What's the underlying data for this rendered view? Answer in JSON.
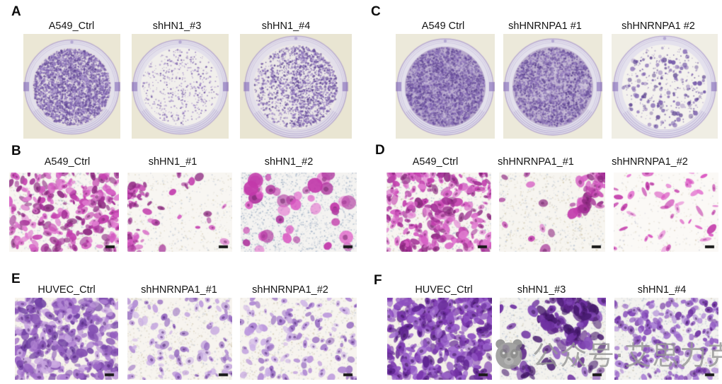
{
  "figure": {
    "watermark": {
      "icon": "panda-icon",
      "text": "公众号·艾思力克",
      "color": "#979797"
    },
    "panels": [
      {
        "letter": "A",
        "assay": "colony-formation-dishes",
        "items": [
          {
            "label": "A549_Ctrl",
            "render": {
              "kind": "dish",
              "seed": 11,
              "bg": "#ebe7d5",
              "wellBg": "#f3f0ea",
              "wash": 0.12,
              "colonies": 3800,
              "dmin": 0.5,
              "dmax": 1.7,
              "bias": "uniform",
              "palette": [
                "#7e63ae",
                "#9278bf",
                "#6a4f9e",
                "#a58fcb",
                "#5d4490"
              ]
            }
          },
          {
            "label": "shHN1_#3",
            "render": {
              "kind": "dish",
              "seed": 12,
              "bg": "#ebe7d5",
              "wellBg": "#f4f2ee",
              "wash": 0.02,
              "colonies": 520,
              "dmin": 0.5,
              "dmax": 1.4,
              "bias": "uniform",
              "palette": [
                "#7e63ae",
                "#9278bf",
                "#6a4f9e",
                "#a58fcb"
              ]
            }
          },
          {
            "label": "shHN1_#4",
            "render": {
              "kind": "dish",
              "seed": 13,
              "bg": "#e9e5d2",
              "wellBg": "#f3f1ec",
              "wash": 0.06,
              "colonies": 2600,
              "dmin": 0.5,
              "dmax": 1.7,
              "bias": "right",
              "palette": [
                "#7e63ae",
                "#9278bf",
                "#6a4f9e",
                "#a58fcb",
                "#5d4490"
              ]
            }
          }
        ]
      },
      {
        "letter": "B",
        "assay": "transwell-micrographs",
        "items": [
          {
            "label": "A549_Ctrl",
            "render": {
              "kind": "micro",
              "seed": 21,
              "bg": "#f8f5f1",
              "noise": 900,
              "noiseColors": [
                "#a9b6cc",
                "#cdc3a4",
                "#c3cbd8"
              ],
              "cells": 240,
              "smin": 3,
              "smax": 8,
              "elong": 0.42,
              "clusters": 0,
              "nucleus": "#6b1f63",
              "scale_bar": true,
              "palette": [
                "#c33fae",
                "#d55cc3",
                "#a32f96",
                "#e07cd0",
                "#8e2a82"
              ]
            }
          },
          {
            "label": "shHN1_#1",
            "render": {
              "kind": "micro",
              "seed": 22,
              "bg": "#f8f6f2",
              "noise": 650,
              "noiseColors": [
                "#b7c2d2",
                "#d6cdb2",
                "#dcd8cc"
              ],
              "cells": 78,
              "smin": 3,
              "smax": 7,
              "elong": 0.45,
              "clusters": 2,
              "nucleus": "#6b1f63",
              "scale_bar": true,
              "palette": [
                "#c33fae",
                "#d55cc3",
                "#a32f96",
                "#8e2a82"
              ]
            }
          },
          {
            "label": "shHN1_#2",
            "render": {
              "kind": "micro",
              "seed": 23,
              "bg": "#f4f3f1",
              "noise": 1600,
              "noiseColors": [
                "#9fb0c6",
                "#8fa2bc",
                "#c3cbd8"
              ],
              "cells": 40,
              "smin": 5,
              "smax": 11,
              "elong": 0.8,
              "clusters": 0,
              "nucleus": "#6b1f63",
              "scale_bar": true,
              "palette": [
                "#d94fc0",
                "#e370cd",
                "#c238aa",
                "#b03aa0"
              ]
            }
          }
        ]
      },
      {
        "letter": "C",
        "assay": "colony-formation-dishes",
        "items": [
          {
            "label": "A549 Ctrl",
            "render": {
              "kind": "dish",
              "seed": 14,
              "bg": "#ece9da",
              "wellBg": "#efece6",
              "wash": 0.5,
              "colonies": 2800,
              "dmin": 0.6,
              "dmax": 1.8,
              "bias": "uniform",
              "solid": true,
              "palette": [
                "#6a4f9e",
                "#7e63ae",
                "#5d4490",
                "#9278bf"
              ]
            }
          },
          {
            "label": "shHNRNPA1 #1",
            "render": {
              "kind": "dish",
              "seed": 15,
              "bg": "#ece9da",
              "wellBg": "#f0ede7",
              "wash": 0.44,
              "colonies": 2200,
              "dmin": 0.6,
              "dmax": 1.8,
              "bias": "uniform",
              "solid": true,
              "palette": [
                "#6a4f9e",
                "#7e63ae",
                "#5d4490",
                "#9278bf"
              ]
            }
          },
          {
            "label": "shHNRNPA1 #2",
            "render": {
              "kind": "dish",
              "seed": 16,
              "bg": "#f0eee4",
              "wellBg": "#f4f2ee",
              "wash": 0.0,
              "colonies": 155,
              "dmin": 1.0,
              "dmax": 3.4,
              "bias": "uniform",
              "microDots": 260,
              "palette": [
                "#6b4fa4",
                "#5d4490",
                "#8468b3"
              ]
            }
          }
        ]
      },
      {
        "letter": "D",
        "assay": "transwell-micrographs",
        "items": [
          {
            "label": "A549_Ctrl",
            "render": {
              "kind": "micro",
              "seed": 24,
              "bg": "#f8f5f1",
              "noise": 1000,
              "noiseColors": [
                "#a9b6cc",
                "#cdc3a4",
                "#bfc8d6"
              ],
              "cells": 250,
              "smin": 3,
              "smax": 8.5,
              "elong": 0.42,
              "clusters": 0,
              "nucleus": "#6b1f63",
              "scale_bar": true,
              "palette": [
                "#c33fae",
                "#d55cc3",
                "#a32f96",
                "#e07cd0",
                "#8e2a82"
              ]
            }
          },
          {
            "label": "shHNRNPA1_#1",
            "render": {
              "kind": "micro",
              "seed": 25,
              "bg": "#f7f5f0",
              "noise": 900,
              "noiseColors": [
                "#b3bfd0",
                "#d2c9ae",
                "#d8d4c8"
              ],
              "cells": 60,
              "smin": 4,
              "smax": 9,
              "elong": 0.5,
              "clusters": 3,
              "nucleus": "#6b1f63",
              "scale_bar": true,
              "palette": [
                "#c33fae",
                "#d55cc3",
                "#a32f96",
                "#8e2a82"
              ]
            }
          },
          {
            "label": "shHNRNPA1_#2",
            "render": {
              "kind": "micro",
              "seed": 26,
              "bg": "#fbf9f6",
              "noise": 350,
              "noiseColors": [
                "#d8cfbb",
                "#c9ccd6",
                "#e2dccd"
              ],
              "cells": 46,
              "smin": 3.5,
              "smax": 9,
              "elong": 0.3,
              "clusters": 0,
              "nucleus": "#8e2a82",
              "scale_bar": true,
              "palette": [
                "#d94fc0",
                "#c238aa",
                "#e57ad2"
              ]
            }
          }
        ]
      },
      {
        "letter": "E",
        "assay": "transwell-micrographs",
        "items": [
          {
            "label": "HUVEC_Ctrl",
            "render": {
              "kind": "micro",
              "seed": 27,
              "bg": "#f6f2ec",
              "noise": 600,
              "noiseColors": [
                "#c9bfa8",
                "#b9c0cf",
                "#d8d2c4"
              ],
              "cells": 330,
              "smin": 4,
              "smax": 9,
              "elong": 0.45,
              "clusters": 0,
              "nucleus": "#41176b",
              "scale_bar": true,
              "palette": [
                "#9a66c4",
                "#8450b2",
                "#b184d3",
                "#6f3fa3",
                "#c9a6e0"
              ]
            }
          },
          {
            "label": "shHNRNPA1_#1",
            "render": {
              "kind": "micro",
              "seed": 28,
              "bg": "#f7f4ef",
              "noise": 1000,
              "noiseColors": [
                "#cfc5ac",
                "#c2c8d4",
                "#ddd8ca"
              ],
              "cells": 100,
              "smin": 3,
              "smax": 7,
              "elong": 0.5,
              "clusters": 0,
              "nucleus": "#41176b",
              "scale_bar": true,
              "palette": [
                "#ab82d2",
                "#bb97dc",
                "#9468bf",
                "#cdb2e6"
              ]
            }
          },
          {
            "label": "shHNRNPA1_#2",
            "render": {
              "kind": "micro",
              "seed": 29,
              "bg": "#f7f4ef",
              "noise": 900,
              "noiseColors": [
                "#cfc5ac",
                "#bfc6d3",
                "#d9d4c6"
              ],
              "cells": 125,
              "smin": 3,
              "smax": 7,
              "elong": 0.5,
              "clusters": 0,
              "nucleus": "#41176b",
              "scale_bar": true,
              "palette": [
                "#ab82d2",
                "#bb97dc",
                "#9468bf",
                "#cdb2e6"
              ]
            }
          }
        ]
      },
      {
        "letter": "F",
        "assay": "transwell-micrographs",
        "items": [
          {
            "label": "HUVEC_Ctrl",
            "render": {
              "kind": "micro",
              "seed": 30,
              "bg": "#f4f0ea",
              "noise": 500,
              "noiseColors": [
                "#c3bba6",
                "#b5bdcd",
                "#d5d0c2"
              ],
              "cells": 340,
              "smin": 4,
              "smax": 9,
              "elong": 0.42,
              "clusters": 0,
              "nucleus": "#33104f",
              "scale_bar": true,
              "palette": [
                "#7a36ad",
                "#8d4fc0",
                "#5f2590",
                "#9b63cc"
              ]
            }
          },
          {
            "label": "shHN1_#3",
            "render": {
              "kind": "micro",
              "seed": 31,
              "bg": "#f3f2ee",
              "noise": 1000,
              "noiseColors": [
                "#a9b6cc",
                "#bfc8d6",
                "#cdc6b0"
              ],
              "cells": 165,
              "smin": 4,
              "smax": 10,
              "elong": 0.45,
              "clusters": 4,
              "nucleus": "#33104f",
              "scale_bar": true,
              "palette": [
                "#5c2387",
                "#6f32a2",
                "#471a6e",
                "#8348b8"
              ]
            }
          },
          {
            "label": "shHN1_#4",
            "render": {
              "kind": "micro",
              "seed": 32,
              "bg": "#f3f2ef",
              "noise": 1000,
              "noiseColors": [
                "#aebacd",
                "#c4ccd9",
                "#d0c9b4"
              ],
              "cells": 200,
              "smin": 3,
              "smax": 6.5,
              "elong": 0.55,
              "clusters": 0,
              "nucleus": "#33104f",
              "scale_bar": true,
              "palette": [
                "#8348b8",
                "#9560c6",
                "#6f32a2",
                "#a97ed4"
              ]
            }
          }
        ]
      }
    ]
  }
}
